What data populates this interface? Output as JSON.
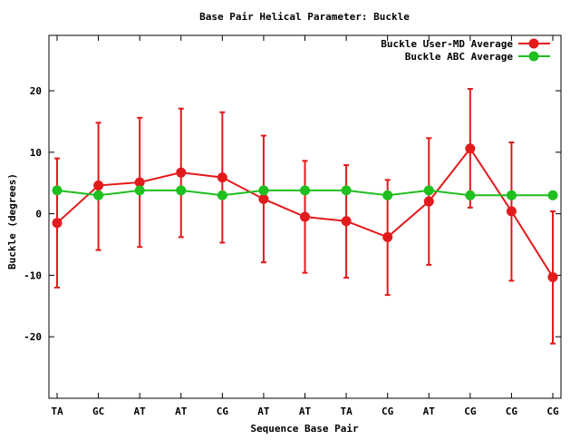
{
  "chart_data": {
    "type": "line",
    "title": "Base Pair Helical Parameter: Buckle",
    "xlabel": "Sequence Base Pair",
    "ylabel": "Buckle (degrees)",
    "categories": [
      "TA",
      "GC",
      "AT",
      "AT",
      "CG",
      "AT",
      "AT",
      "TA",
      "CG",
      "AT",
      "CG",
      "CG",
      "CG"
    ],
    "ylim": [
      -30,
      29
    ],
    "yticks": [
      -20,
      -10,
      0,
      10,
      20
    ],
    "grid": false,
    "legend_position": "top-right",
    "series": [
      {
        "name": "Buckle User-MD Average",
        "color": "#e31a1c",
        "values": [
          -1.5,
          4.6,
          5.1,
          6.7,
          5.9,
          2.4,
          -0.5,
          -1.2,
          -3.8,
          2.0,
          10.6,
          0.4,
          -10.3
        ],
        "error_low": [
          -12.0,
          -5.9,
          -5.4,
          -3.8,
          -4.7,
          -7.9,
          -9.6,
          -10.4,
          -13.2,
          -8.3,
          1.0,
          -10.9,
          -21.1
        ],
        "error_high": [
          9.0,
          14.8,
          15.6,
          17.1,
          16.5,
          12.7,
          8.6,
          7.9,
          5.5,
          12.3,
          20.3,
          11.6,
          0.4
        ]
      },
      {
        "name": "Buckle ABC Average",
        "color": "#1fbf1f",
        "values": [
          3.8,
          3.0,
          3.8,
          3.8,
          3.0,
          3.8,
          3.8,
          3.8,
          3.0,
          3.8,
          3.0,
          3.0,
          3.0
        ]
      }
    ]
  }
}
